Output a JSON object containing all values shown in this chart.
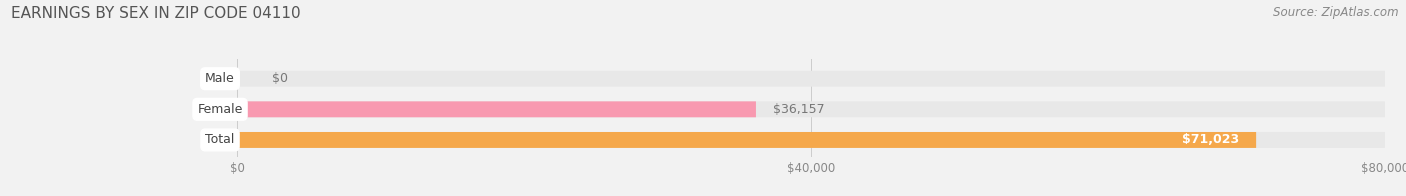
{
  "title": "EARNINGS BY SEX IN ZIP CODE 04110",
  "source": "Source: ZipAtlas.com",
  "categories": [
    "Male",
    "Female",
    "Total"
  ],
  "values": [
    0,
    36157,
    71023
  ],
  "max_value": 80000,
  "bar_colors": [
    "#a8c8f0",
    "#f899b0",
    "#f5a84b"
  ],
  "bar_labels": [
    "$0",
    "$36,157",
    "$71,023"
  ],
  "tick_labels": [
    "$0",
    "$40,000",
    "$80,000"
  ],
  "tick_values": [
    0,
    40000,
    80000
  ],
  "background_color": "#f2f2f2",
  "bar_bg_color": "#e8e8e8",
  "title_color": "#555555",
  "label_fontsize": 9,
  "title_fontsize": 11,
  "source_fontsize": 8.5
}
